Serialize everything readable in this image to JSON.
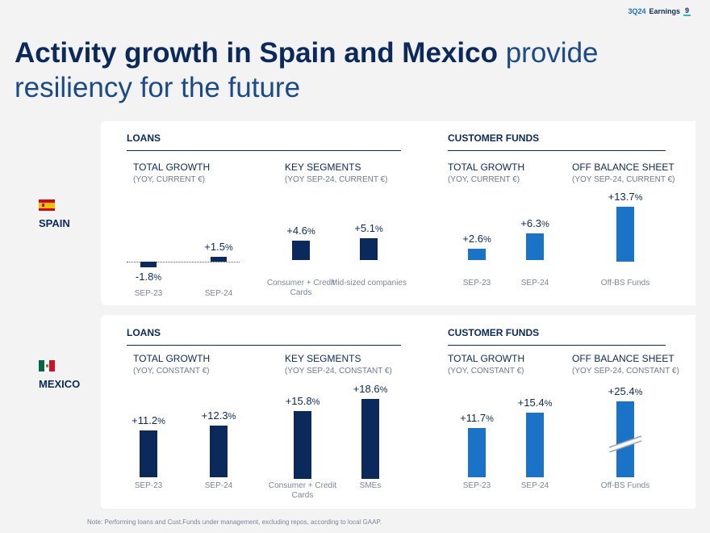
{
  "header": {
    "prefix": "3Q24",
    "title": "Earnings",
    "page": "9"
  },
  "title": {
    "bold": "Activity growth in Spain and Mexico",
    "light": "provide resiliency for the future"
  },
  "spain": {
    "country": "SPAIN",
    "loans_label": "LOANS",
    "funds_label": "CUSTOMER FUNDS",
    "total_growth_loans": {
      "title": "TOTAL GROWTH",
      "note": "(YOY, CURRENT €)"
    },
    "key_segments": {
      "title": "KEY SEGMENTS",
      "note": "(YOY SEP-24, CURRENT €)"
    },
    "total_growth_funds": {
      "title": "TOTAL GROWTH",
      "note": "(YOY, CURRENT €)"
    },
    "off_balance": {
      "title": "OFF BALANCE SHEET",
      "note": "(YOY SEP-24, CURRENT €)"
    }
  },
  "mexico": {
    "country": "MEXICO",
    "loans_label": "LOANS",
    "funds_label": "CUSTOMER FUNDS",
    "total_growth_loans": {
      "title": "TOTAL GROWTH",
      "note": "(YOY, CONSTANT €)"
    },
    "key_segments": {
      "title": "KEY SEGMENTS",
      "note": "(YOY SEP-24, CONSTANT €)"
    },
    "total_growth_funds": {
      "title": "TOTAL GROWTH",
      "note": "(YOY, CONSTANT €)"
    },
    "off_balance": {
      "title": "OFF BALANCE SHEET",
      "note": "(YOY SEP-24, CONSTANT €)"
    }
  },
  "chart_data": [
    {
      "type": "bar",
      "title": "Spain Loans TOTAL GROWTH",
      "categories": [
        "SEP-23",
        "SEP-24"
      ],
      "values": [
        -1.8,
        1.5
      ],
      "labels": [
        "-1.8",
        "+1.5"
      ],
      "unit": "%"
    },
    {
      "type": "bar",
      "title": "Spain Loans KEY SEGMENTS",
      "categories": [
        "Consumer + Credit Cards",
        "Mid-sized companies"
      ],
      "values": [
        4.6,
        5.1
      ],
      "labels": [
        "+4.6",
        "+5.1"
      ],
      "unit": "%"
    },
    {
      "type": "bar",
      "title": "Spain Customer Funds TOTAL GROWTH",
      "categories": [
        "SEP-23",
        "SEP-24"
      ],
      "values": [
        2.6,
        6.3
      ],
      "labels": [
        "+2.6",
        "+6.3"
      ],
      "unit": "%"
    },
    {
      "type": "bar",
      "title": "Spain OFF BALANCE SHEET",
      "categories": [
        "Off-BS Funds"
      ],
      "values": [
        13.7
      ],
      "labels": [
        "+13.7"
      ],
      "unit": "%"
    },
    {
      "type": "bar",
      "title": "Mexico Loans TOTAL GROWTH",
      "categories": [
        "SEP-23",
        "SEP-24"
      ],
      "values": [
        11.2,
        12.3
      ],
      "labels": [
        "+11.2",
        "+12.3"
      ],
      "unit": "%"
    },
    {
      "type": "bar",
      "title": "Mexico Loans KEY SEGMENTS",
      "categories": [
        "Consumer + Credit Cards",
        "SMEs"
      ],
      "values": [
        15.8,
        18.6
      ],
      "labels": [
        "+15.8",
        "+18.6"
      ],
      "unit": "%"
    },
    {
      "type": "bar",
      "title": "Mexico Customer Funds TOTAL GROWTH",
      "categories": [
        "SEP-23",
        "SEP-24"
      ],
      "values": [
        11.7,
        15.4
      ],
      "labels": [
        "+11.7",
        "+15.4"
      ],
      "unit": "%"
    },
    {
      "type": "bar",
      "title": "Mexico OFF BALANCE SHEET",
      "categories": [
        "Off-BS Funds"
      ],
      "values": [
        25.4
      ],
      "labels": [
        "+25.4"
      ],
      "unit": "%",
      "axis_break": true
    }
  ],
  "footnote": "Note: Performing loans and Cust.Funds under management, excluding repos, according to local GAAP.",
  "colors": {
    "navy": "#0b2a5b",
    "blue": "#1a73c6",
    "accent": "#1fb9d6"
  }
}
